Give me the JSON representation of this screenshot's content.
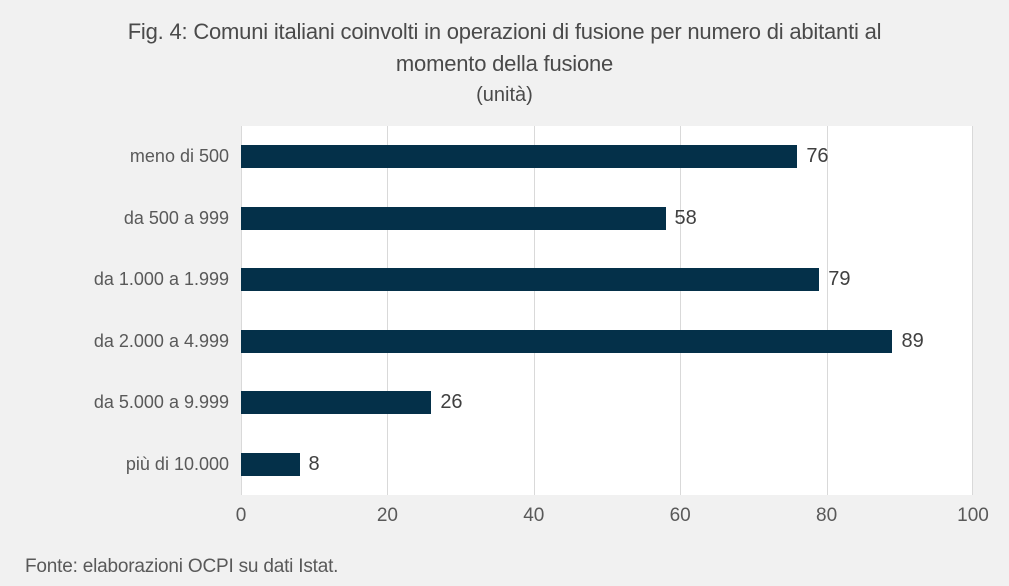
{
  "header": {
    "title_lines": [
      "Fig. 4: Comuni italiani coinvolti in operazioni di fusione per numero di abitanti al",
      "momento della fusione"
    ],
    "subtitle": "(unità)"
  },
  "footer": {
    "source": "Fonte: elaborazioni OCPI su dati Istat."
  },
  "colors": {
    "background": "#f1f1f1",
    "plot_background": "#ffffff",
    "bar": "#043049",
    "gridline": "#d9d9d9",
    "title_text": "#4a4a4a",
    "label_text": "#595959",
    "value_text": "#404040"
  },
  "chart_data": {
    "type": "bar",
    "orientation": "horizontal",
    "title": "Fig. 4: Comuni italiani coinvolti in operazioni di fusione per numero di abitanti al momento della fusione",
    "subtitle": "(unità)",
    "categories": [
      "meno di 500",
      "da 500 a 999",
      "da 1.000 a 1.999",
      "da 2.000 a 4.999",
      "da 5.000 a 9.999",
      "più di 10.000"
    ],
    "values": [
      76,
      58,
      79,
      89,
      26,
      8
    ],
    "xlabel": "",
    "ylabel": "",
    "xlim": [
      0,
      100
    ],
    "xticks": [
      0,
      20,
      40,
      60,
      80,
      100
    ],
    "grid": "vertical",
    "legend": "none",
    "data_labels": true,
    "source": "Fonte: elaborazioni OCPI su dati Istat."
  }
}
